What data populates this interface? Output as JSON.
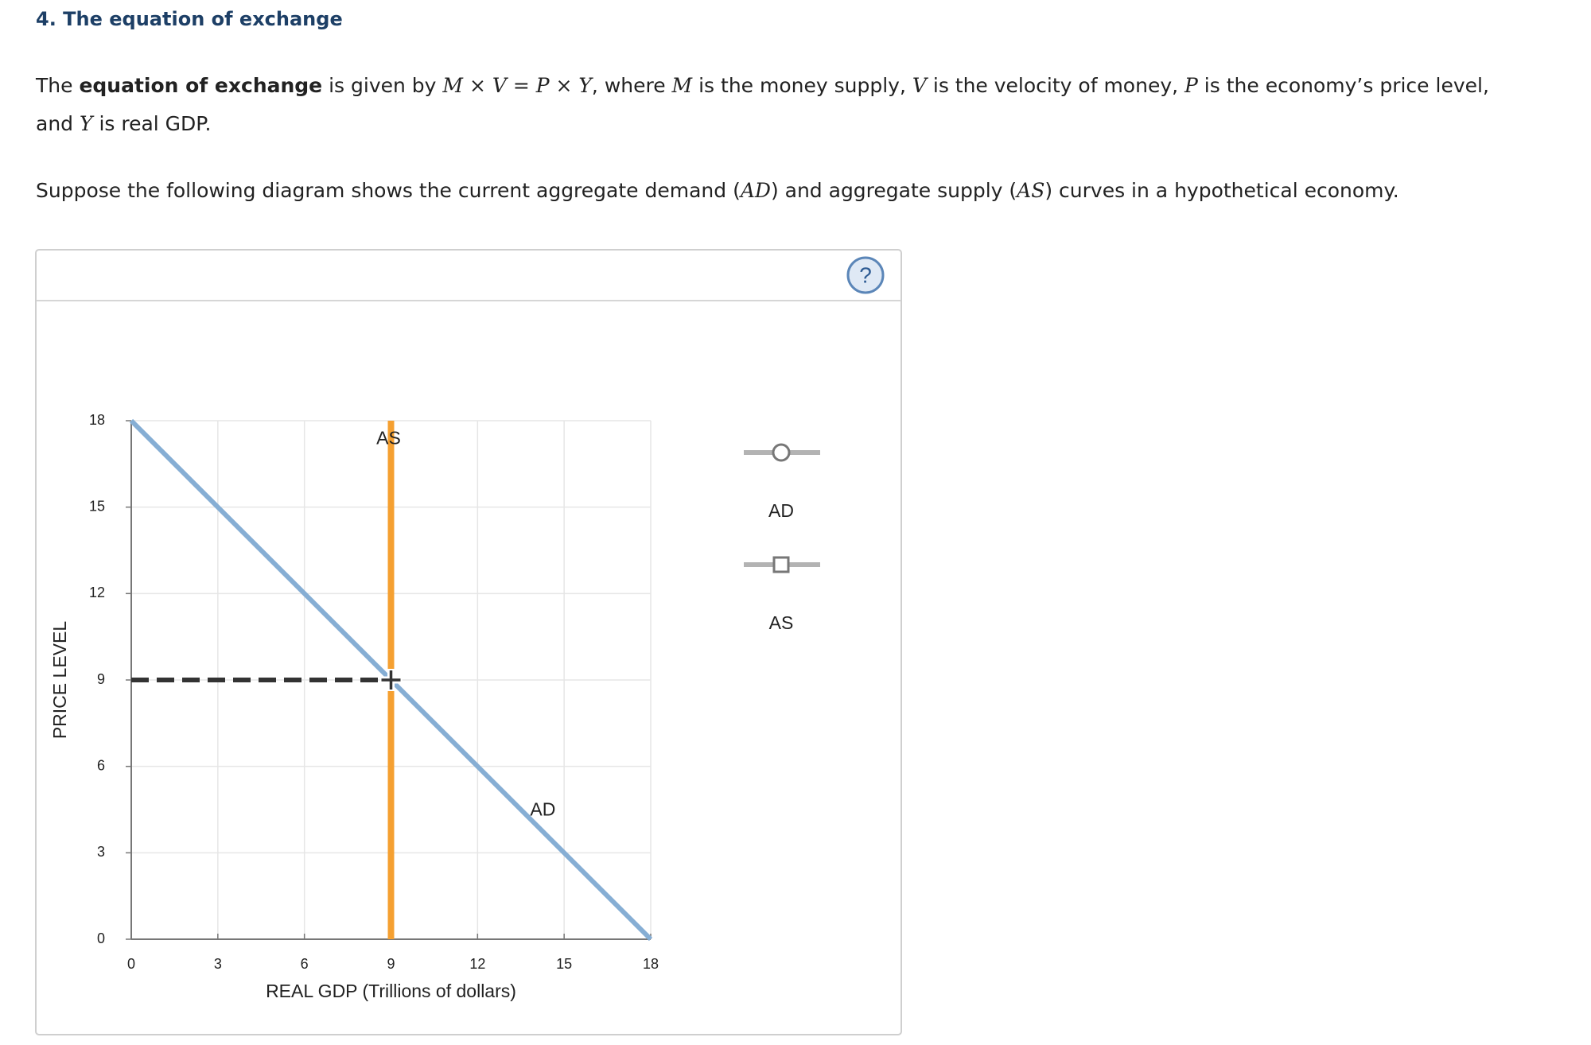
{
  "header": {
    "title": "4. The equation of exchange"
  },
  "paragraphs": [
    [
      "The ",
      "equation of exchange",
      " is given by ",
      "M × V = P × Y",
      ", where ",
      "M",
      " is the money supply, ",
      "V",
      " is the velocity of money, ",
      "P",
      " is the economy’s price level, and ",
      "Y",
      " is real GDP."
    ],
    [
      "Suppose the following diagram shows the current aggregate demand (",
      "AD",
      ") and aggregate supply (",
      "AS",
      ") curves in a hypothetical economy."
    ]
  ],
  "help_icon": "?",
  "chart_data": {
    "type": "line",
    "xlabel": "REAL GDP (Trillions of dollars)",
    "ylabel": "PRICE LEVEL",
    "xlim": [
      0,
      18
    ],
    "ylim": [
      0,
      18
    ],
    "xticks": [
      0,
      3,
      6,
      9,
      12,
      15,
      18
    ],
    "yticks": [
      0,
      3,
      6,
      9,
      12,
      15,
      18
    ],
    "grid": true,
    "series": [
      {
        "name": "AD",
        "color": "#86aed4",
        "x": [
          0,
          18
        ],
        "values": [
          18,
          0
        ]
      },
      {
        "name": "AS",
        "color": "#f5a031",
        "x": [
          9,
          9
        ],
        "values": [
          0,
          18
        ]
      }
    ],
    "guides": [
      {
        "x": 9,
        "y": 9
      }
    ],
    "palette": [
      {
        "label": "AD",
        "symbol": "circle"
      },
      {
        "label": "AS",
        "symbol": "square"
      }
    ]
  }
}
